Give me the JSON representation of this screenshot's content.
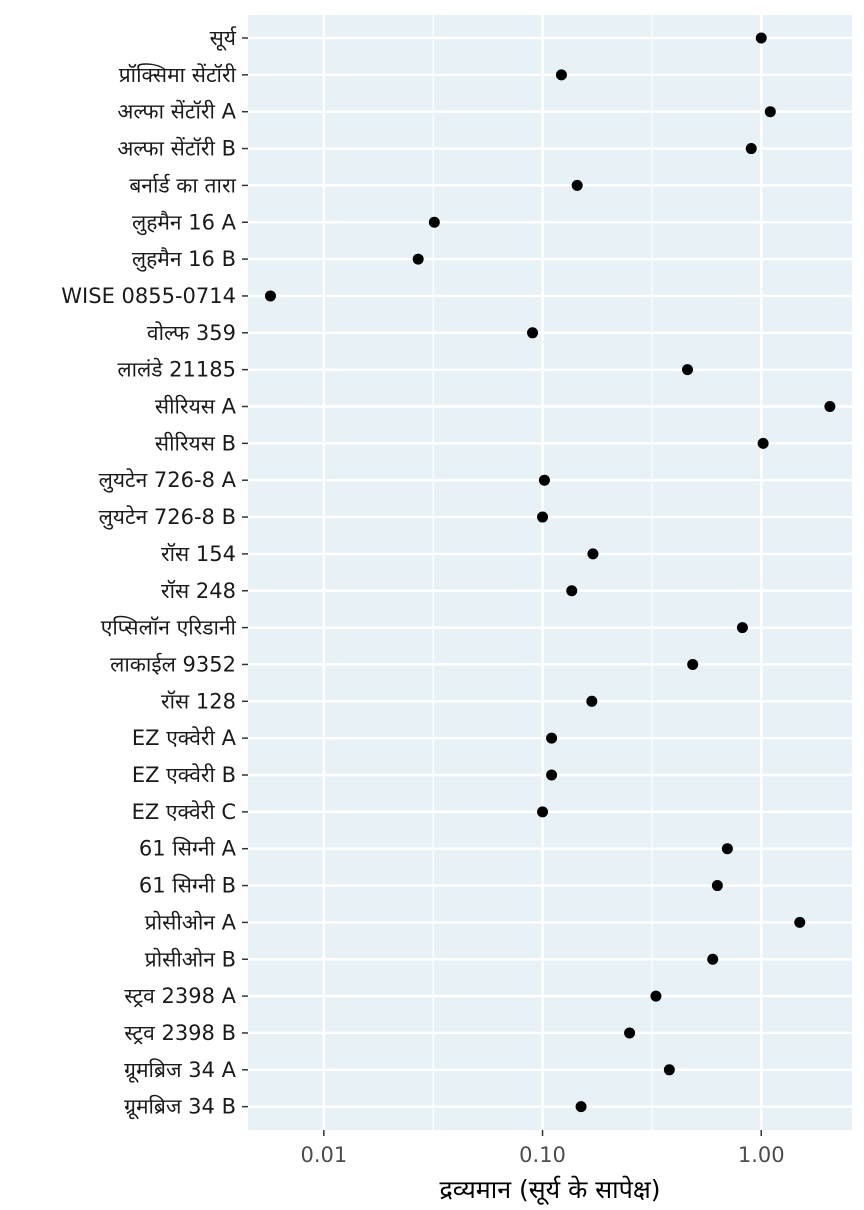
{
  "chart_data": {
    "type": "scatter",
    "xlabel": "द्रव्यमान (सूर्य के सापेक्ष)",
    "ylabel": "",
    "x_scale": "log10",
    "xlim": [
      0.0045,
      2.6
    ],
    "x_ticks": [
      0.01,
      0.1,
      1
    ],
    "x_tick_labels": [
      "0.01",
      "0.10",
      "1.00"
    ],
    "grid": true,
    "colors": {
      "panel": "#e8f1f6",
      "grid": "#ffffff",
      "point": "#000000"
    },
    "categories": [
      "सूर्य",
      "प्रॉक्सिमा सेंटॉरी",
      "अल्फा सेंटॉरी A",
      "अल्फा सेंटॉरी B",
      "बर्नार्ड का तारा",
      "लुहमैन 16 A",
      "लुहमैन 16 B",
      "WISE 0855-0714",
      "वोल्फ 359",
      "लालंडे 21185",
      "सीरियस A",
      "सीरियस B",
      "लुयटेन 726-8 A",
      "लुयटेन 726-8 B",
      "रॉस 154",
      "रॉस 248",
      "एप्सिलॉन एरिडानी",
      "लाकाईल 9352",
      "रॉस 128",
      "EZ एक्वेरी A",
      "EZ एक्वेरी B",
      "EZ एक्वेरी C",
      "61 सिग्नी A",
      "61 सिग्नी B",
      "प्रोसीओन A",
      "प्रोसीओन B",
      "स्ट्रव 2398 A",
      "स्ट्रव 2398 B",
      "ग्रूमब्रिज 34 A",
      "ग्रूमब्रिज 34 B"
    ],
    "values": [
      1.0,
      0.122,
      1.1,
      0.9,
      0.144,
      0.032,
      0.027,
      0.0057,
      0.09,
      0.46,
      2.06,
      1.02,
      0.102,
      0.1,
      0.17,
      0.136,
      0.82,
      0.486,
      0.168,
      0.11,
      0.11,
      0.1,
      0.7,
      0.63,
      1.5,
      0.6,
      0.33,
      0.25,
      0.38,
      0.15
    ]
  }
}
